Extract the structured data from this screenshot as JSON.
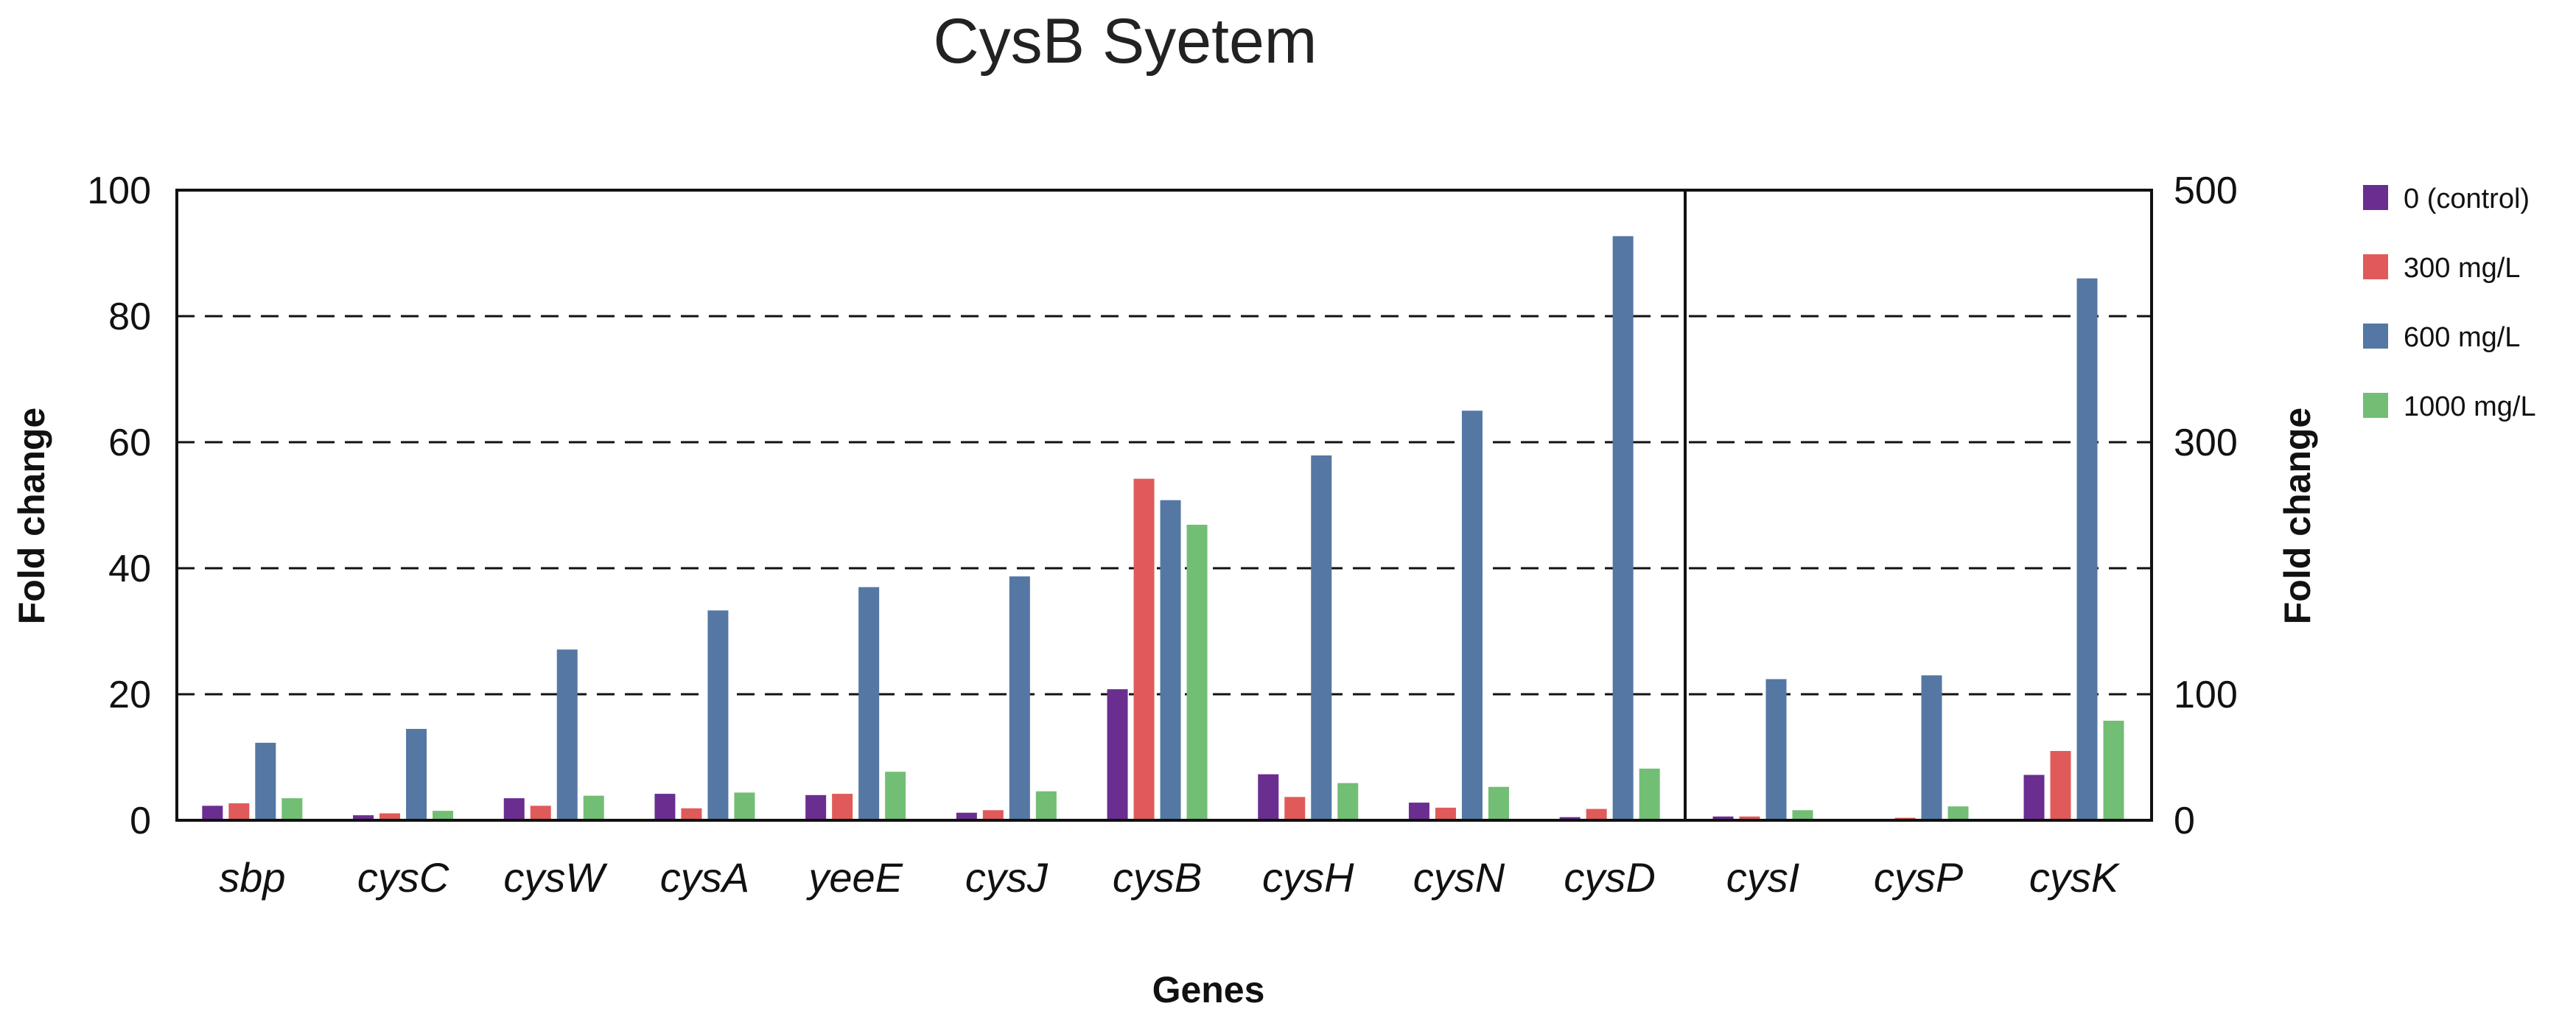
{
  "chart_data": {
    "type": "bar",
    "title": "CysB  Syetem",
    "xlabel": "Genes",
    "ylabel": "Fold change",
    "y2label": "Fold change",
    "ylim": [
      0,
      100
    ],
    "yticks": [
      "0",
      "20",
      "40",
      "60",
      "80",
      "100"
    ],
    "y2lim": [
      0,
      500
    ],
    "y2ticks": [
      "0",
      "100",
      "300",
      "500"
    ],
    "grid": "dashed horizontal",
    "legend_position": "top-right",
    "series": [
      {
        "name": "0 (control)",
        "color": "#6a2e91"
      },
      {
        "name": "300 mg/L",
        "color": "#e05a5a"
      },
      {
        "name": "600 mg/L",
        "color": "#5577a3"
      },
      {
        "name": "1000 mg/L",
        "color": "#72be74"
      }
    ],
    "panels": [
      {
        "axis": "left",
        "categories": [
          "sbp",
          "cysC",
          "cysW",
          "cysA",
          "yeeE",
          "cysJ",
          "cysB",
          "cysH",
          "cysN",
          "cysD"
        ],
        "values": [
          [
            2.3,
            0.8,
            3.5,
            4.2,
            4.0,
            1.2,
            20.8,
            7.3,
            2.8,
            0.5
          ],
          [
            2.7,
            1.1,
            2.3,
            1.9,
            4.2,
            1.6,
            54.2,
            3.7,
            2.0,
            1.8
          ],
          [
            12.3,
            14.5,
            27.1,
            33.3,
            37.0,
            38.7,
            50.8,
            57.9,
            65.0,
            92.7
          ],
          [
            3.5,
            1.5,
            3.9,
            4.4,
            7.7,
            4.6,
            46.9,
            5.9,
            5.3,
            8.2
          ]
        ]
      },
      {
        "axis": "right",
        "categories": [
          "cysI",
          "cysP",
          "cysK"
        ],
        "values": [
          [
            3,
            0,
            36
          ],
          [
            3,
            2,
            55
          ],
          [
            112,
            115,
            430
          ],
          [
            8,
            11,
            79
          ]
        ]
      }
    ]
  }
}
